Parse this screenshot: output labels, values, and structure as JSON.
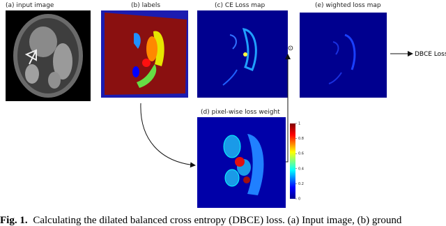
{
  "panels": {
    "a": {
      "label": "(a) input image"
    },
    "b": {
      "label": "(b) labels"
    },
    "c": {
      "label": "(c) CE Loss map"
    },
    "d": {
      "label": "(d) pixel-wise loss weight",
      "colorbar": [
        0,
        0.2,
        0.4,
        0.6,
        0.8,
        1
      ]
    },
    "e": {
      "label": "(e) wighted loss map"
    }
  },
  "operator": "⊙",
  "output": "DBCE Loss",
  "caption": {
    "number": "Fig. 1.",
    "text": "Calculating the dilated balanced cross entropy (DBCE) loss. (a) Input image, (b) ground"
  }
}
